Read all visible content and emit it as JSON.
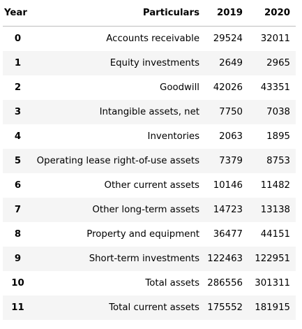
{
  "table": {
    "headers": {
      "year": "Year",
      "particulars": "Particulars",
      "col_2019": "2019",
      "col_2020": "2020"
    },
    "rows": [
      {
        "index": "0",
        "particulars": "Accounts receivable",
        "v2019": "29524",
        "v2020": "32011"
      },
      {
        "index": "1",
        "particulars": "Equity investments",
        "v2019": "2649",
        "v2020": "2965"
      },
      {
        "index": "2",
        "particulars": "Goodwill",
        "v2019": "42026",
        "v2020": "43351"
      },
      {
        "index": "3",
        "particulars": "Intangible assets, net",
        "v2019": "7750",
        "v2020": "7038"
      },
      {
        "index": "4",
        "particulars": "Inventories",
        "v2019": "2063",
        "v2020": "1895"
      },
      {
        "index": "5",
        "particulars": "Operating lease right-of-use assets",
        "v2019": "7379",
        "v2020": "8753"
      },
      {
        "index": "6",
        "particulars": "Other current assets",
        "v2019": "10146",
        "v2020": "11482"
      },
      {
        "index": "7",
        "particulars": "Other long-term assets",
        "v2019": "14723",
        "v2020": "13138"
      },
      {
        "index": "8",
        "particulars": "Property and equipment",
        "v2019": "36477",
        "v2020": "44151"
      },
      {
        "index": "9",
        "particulars": "Short-term investments",
        "v2019": "122463",
        "v2020": "122951"
      },
      {
        "index": "10",
        "particulars": "Total assets",
        "v2019": "286556",
        "v2020": "301311"
      },
      {
        "index": "11",
        "particulars": "Total current assets",
        "v2019": "175552",
        "v2020": "181915"
      }
    ]
  }
}
